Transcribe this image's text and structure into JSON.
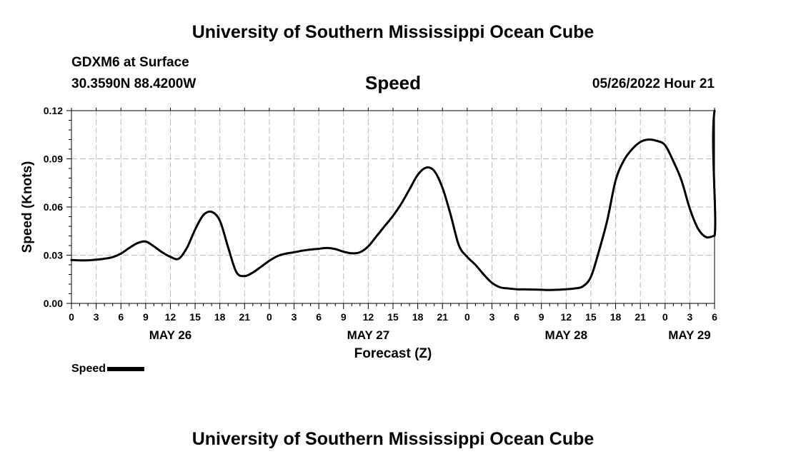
{
  "header": {
    "title_top": "University of Southern Mississippi Ocean Cube",
    "station": "GDXM6 at Surface",
    "coords": "30.3590N  88.4200W",
    "datetime": "05/26/2022 Hour 21",
    "title_bottom": "University of Southern Mississippi Ocean Cube"
  },
  "legend": {
    "label": "Speed"
  },
  "colors": {
    "line": "#000000",
    "grid": "#bbbbbb",
    "background": "#ffffff"
  },
  "chart_data": {
    "type": "line",
    "title": "Speed",
    "xlabel": "Forecast (Z)",
    "ylabel": "Speed (Knots)",
    "ylim": [
      0,
      0.12
    ],
    "xlim": [
      0,
      78
    ],
    "x_units": "hours since May 26 00Z",
    "yticks": [
      "0.00",
      "0.03",
      "0.06",
      "0.09",
      "0.12"
    ],
    "ytick_values": [
      0,
      0.03,
      0.06,
      0.09,
      0.12
    ],
    "xtick_labels": [
      "0",
      "3",
      "6",
      "9",
      "12",
      "15",
      "18",
      "21",
      "0",
      "3",
      "6",
      "9",
      "12",
      "15",
      "18",
      "21",
      "0",
      "3",
      "6",
      "9",
      "12",
      "15",
      "18",
      "21",
      "0",
      "3",
      "6"
    ],
    "date_labels": [
      {
        "label": "MAY 26",
        "hour": 12
      },
      {
        "label": "MAY 27",
        "hour": 36
      },
      {
        "label": "MAY 28",
        "hour": 60
      },
      {
        "label": "MAY 29",
        "hour": 78
      }
    ],
    "grid": true,
    "series": [
      {
        "name": "Speed",
        "x": [
          0,
          1,
          2,
          3,
          4,
          5,
          6,
          7,
          8,
          9,
          10,
          11,
          12,
          13,
          14,
          15,
          16,
          17,
          18,
          19,
          20,
          21,
          22,
          23,
          24,
          25,
          26,
          27,
          28,
          29,
          30,
          31,
          32,
          33,
          34,
          35,
          36,
          37,
          38,
          39,
          40,
          41,
          42,
          43,
          44,
          45,
          46,
          47,
          48,
          49,
          50,
          51,
          52,
          53,
          54,
          55,
          56,
          57,
          58,
          59,
          60,
          61,
          62,
          63,
          64,
          65,
          66,
          67,
          68,
          69,
          70,
          71,
          72,
          73,
          74,
          75,
          76,
          77,
          78
        ],
        "values": [
          0.027,
          0.0268,
          0.0268,
          0.0272,
          0.0278,
          0.0288,
          0.031,
          0.0345,
          0.0375,
          0.0385,
          0.0355,
          0.0318,
          0.029,
          0.0278,
          0.0345,
          0.046,
          0.055,
          0.057,
          0.0515,
          0.035,
          0.0195,
          0.017,
          0.0192,
          0.0228,
          0.0265,
          0.0295,
          0.031,
          0.0318,
          0.0328,
          0.0335,
          0.034,
          0.0345,
          0.0338,
          0.0322,
          0.0312,
          0.0318,
          0.0355,
          0.0418,
          0.0482,
          0.0545,
          0.062,
          0.071,
          0.08,
          0.0845,
          0.0825,
          0.072,
          0.055,
          0.036,
          0.029,
          0.024,
          0.018,
          0.0128,
          0.01,
          0.0093,
          0.0088,
          0.0087,
          0.0086,
          0.0085,
          0.0083,
          0.0085,
          0.0088,
          0.0093,
          0.0105,
          0.0165,
          0.033,
          0.052,
          0.0765,
          0.089,
          0.096,
          0.1005,
          0.102,
          0.1012,
          0.0985,
          0.0885,
          0.0765,
          0.059,
          0.0465,
          0.0412,
          0.0422
        ]
      }
    ]
  }
}
